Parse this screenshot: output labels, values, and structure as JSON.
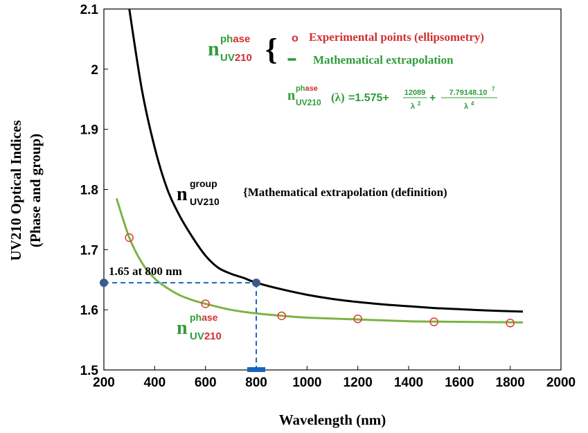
{
  "chart_data": {
    "type": "line",
    "xlabel": "Wavelength (nm)",
    "ylabel_line1": "UV210 Optical Indices",
    "ylabel_line2": "(Phase and group)",
    "xlim": [
      200,
      2000
    ],
    "ylim": [
      1.5,
      2.1
    ],
    "xticks": [
      200,
      400,
      600,
      800,
      1000,
      1200,
      1400,
      1600,
      1800,
      2000
    ],
    "xtick_labels": [
      "200",
      "400",
      "600",
      "800",
      "1000",
      "1200",
      "1400",
      "1600",
      "1800",
      "2000"
    ],
    "yticks": [
      1.5,
      1.6,
      1.7,
      1.8,
      1.9,
      2.0,
      2.1
    ],
    "ytick_labels": [
      "1.5",
      "1.6",
      "1.7",
      "1.8",
      "1.9",
      "2",
      "2.1"
    ],
    "grid": false,
    "series": [
      {
        "name": "n_group_UV210",
        "kind": "line",
        "color": "#000000",
        "x": [
          300,
          350,
          400,
          450,
          500,
          550,
          600,
          650,
          700,
          750,
          800,
          900,
          1000,
          1100,
          1200,
          1300,
          1400,
          1500,
          1600,
          1700,
          1850
        ],
        "y": [
          2.1,
          1.965,
          1.87,
          1.8,
          1.755,
          1.72,
          1.69,
          1.67,
          1.66,
          1.653,
          1.645,
          1.634,
          1.625,
          1.618,
          1.613,
          1.609,
          1.606,
          1.603,
          1.601,
          1.599,
          1.597
        ]
      },
      {
        "name": "n_phase_UV210 (Mathematical extrapolation)",
        "kind": "line",
        "color": "#7cb342",
        "x": [
          250,
          300,
          350,
          400,
          450,
          500,
          550,
          600,
          700,
          800,
          900,
          1000,
          1200,
          1400,
          1600,
          1850
        ],
        "y": [
          1.785,
          1.72,
          1.678,
          1.652,
          1.636,
          1.624,
          1.616,
          1.61,
          1.6,
          1.594,
          1.59,
          1.587,
          1.584,
          1.581,
          1.58,
          1.579
        ]
      },
      {
        "name": "Experimental points (ellipsometry)",
        "kind": "scatter",
        "color": "#e53935",
        "x": [
          300,
          600,
          900,
          1200,
          1500,
          1800
        ],
        "y": [
          1.72,
          1.61,
          1.59,
          1.585,
          1.58,
          1.578
        ]
      }
    ],
    "marker_point": {
      "x": 800,
      "y": 1.645,
      "label": "1.65 at 800 nm"
    },
    "annotations": {
      "n_letter": "n",
      "sup_phase_ph": "ph",
      "sup_phase_ase": "ase",
      "sub_uv": "UV",
      "sub_210": "210",
      "sup_group": "group",
      "brace": "{",
      "legend_circle": "o",
      "legend_exp": "Experimental points (ellipsometry)",
      "legend_dash": "━",
      "legend_math": "Mathematical extrapolation",
      "group_desc": "{Mathematical extrapolation (definition)",
      "formula_lambda": "(λ)",
      "formula_equals": "=1.575+",
      "formula_num1": "12089",
      "formula_den1": "λ",
      "formula_pow2": "2",
      "formula_plus": "+",
      "formula_num2": "7.79148.10",
      "formula_pow7": "7",
      "formula_den2": "λ",
      "formula_pow4": "4"
    }
  }
}
